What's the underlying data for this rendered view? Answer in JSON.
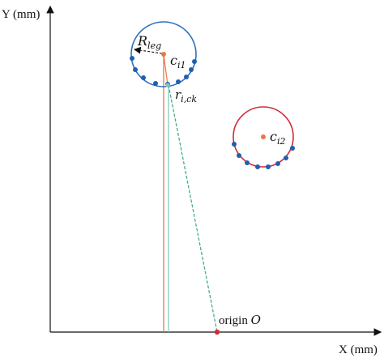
{
  "axes": {
    "y_label": "Y (mm)",
    "x_label": "X (mm)"
  },
  "circle_1": {
    "radius_label": {
      "main": "R",
      "sub": "leg"
    },
    "center_label": {
      "main": "c",
      "sub": "i1"
    },
    "contact_label": {
      "main": "r",
      "sub": "i,ck"
    }
  },
  "circle_2": {
    "center_label": {
      "main": "c",
      "sub": "i2"
    }
  },
  "origin": {
    "label": "origin",
    "symbol": "O"
  }
}
